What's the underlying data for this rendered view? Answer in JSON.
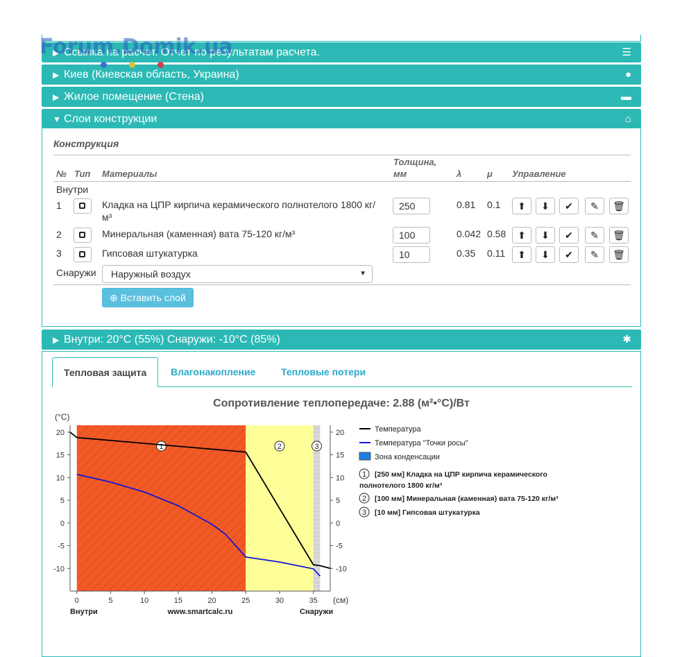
{
  "watermark": "Forum.Domik.ua",
  "sections": {
    "report": {
      "label": "Ссылка на расчет. Отчет по результатам расчета.",
      "icon": "list-icon"
    },
    "location": {
      "label": "Киев (Киевская область, Украина)",
      "icon": "globe-icon"
    },
    "room": {
      "label": "Жилое помещение (Стена)",
      "icon": "bus-icon"
    },
    "layers": {
      "label": "Слои конструкции",
      "icon": "home-icon"
    },
    "climate": {
      "label": "Внутри: 20°C (55%) Снаружи: -10°C (85%)",
      "icon": "asterisk-icon"
    }
  },
  "construction": {
    "heading": "Конструкция",
    "columns": {
      "num": "№",
      "type": "Тип",
      "materials": "Материалы",
      "thickness_1": "Толщина,",
      "thickness_2": "мм",
      "lambda": "λ",
      "mu": "μ",
      "control": "Управление"
    },
    "inside_label": "Внутри",
    "outside_label": "Снаружи",
    "rows": [
      {
        "num": "1",
        "material_1": "Кладка на ЦПР кирпича керамического полнотелого 1800 кг/",
        "material_2": "м³",
        "thickness": "250",
        "lambda": "0.81",
        "mu": "0.1"
      },
      {
        "num": "2",
        "material_1": "Минеральная (каменная) вата 75-120 кг/м³",
        "material_2": "",
        "thickness": "100",
        "lambda": "0.042",
        "mu": "0.58"
      },
      {
        "num": "3",
        "material_1": "Гипсовая штукатурка",
        "material_2": "",
        "thickness": "10",
        "lambda": "0.35",
        "mu": "0.11"
      }
    ],
    "outside_select": "Наружный воздух",
    "insert_button": "Вставить слой"
  },
  "tabs": [
    {
      "label": "Тепловая защита",
      "active": true
    },
    {
      "label": "Влагонакопление",
      "active": false
    },
    {
      "label": "Тепловые потери",
      "active": false
    }
  ],
  "chart_data": {
    "type": "line",
    "title": "Сопротивление теплопередаче: 2.88 (м²•°C)/Вт",
    "ylabel": "(°C)",
    "xlabel": "(см)",
    "x_ticks": [
      "0",
      "5",
      "10",
      "15",
      "20",
      "25",
      "30",
      "35"
    ],
    "y_ticks": [
      "20",
      "15",
      "10",
      "5",
      "0",
      "-5",
      "-10"
    ],
    "xlim": [
      -1,
      37.5
    ],
    "ylim": [
      -15,
      21.5
    ],
    "bottom_left": "Внутри",
    "bottom_center": "www.smartcalc.ru",
    "bottom_right": "Снаружи",
    "layers": [
      {
        "id": "1",
        "from": 0,
        "to": 25,
        "color": "#f25a25"
      },
      {
        "id": "2",
        "from": 25,
        "to": 35,
        "color": "#ffff99"
      },
      {
        "id": "3",
        "from": 35,
        "to": 36,
        "color": "#d9d9d9"
      }
    ],
    "series": [
      {
        "name": "Температура",
        "color": "#000000",
        "x": [
          -1,
          0,
          25,
          35,
          36,
          37.5
        ],
        "y": [
          20,
          18.8,
          15.6,
          -9.2,
          -9.4,
          -10
        ]
      },
      {
        "name": "Температура \"Точки росы\"",
        "color": "#1515d6",
        "x": [
          0,
          5,
          10,
          15,
          20,
          22,
          25,
          30,
          35,
          36
        ],
        "y": [
          10.7,
          9.0,
          6.8,
          3.8,
          -0.3,
          -2.5,
          -7.5,
          -8.6,
          -10.1,
          -11.7
        ]
      }
    ],
    "legend": {
      "items": [
        "Температура",
        "Температура \"Точки росы\"",
        "Зона конденсации"
      ],
      "layer_1": "[250 мм] Кладка на ЦПР кирпича керамического",
      "layer_1b": "полнотелого 1800 кг/м³",
      "layer_2": "[100 мм] Минеральная (каменная) вата 75-120 кг/м³",
      "layer_3": "[10 мм] Гипсовая штукатурка",
      "condensation_color": "#1a7fe0"
    }
  }
}
